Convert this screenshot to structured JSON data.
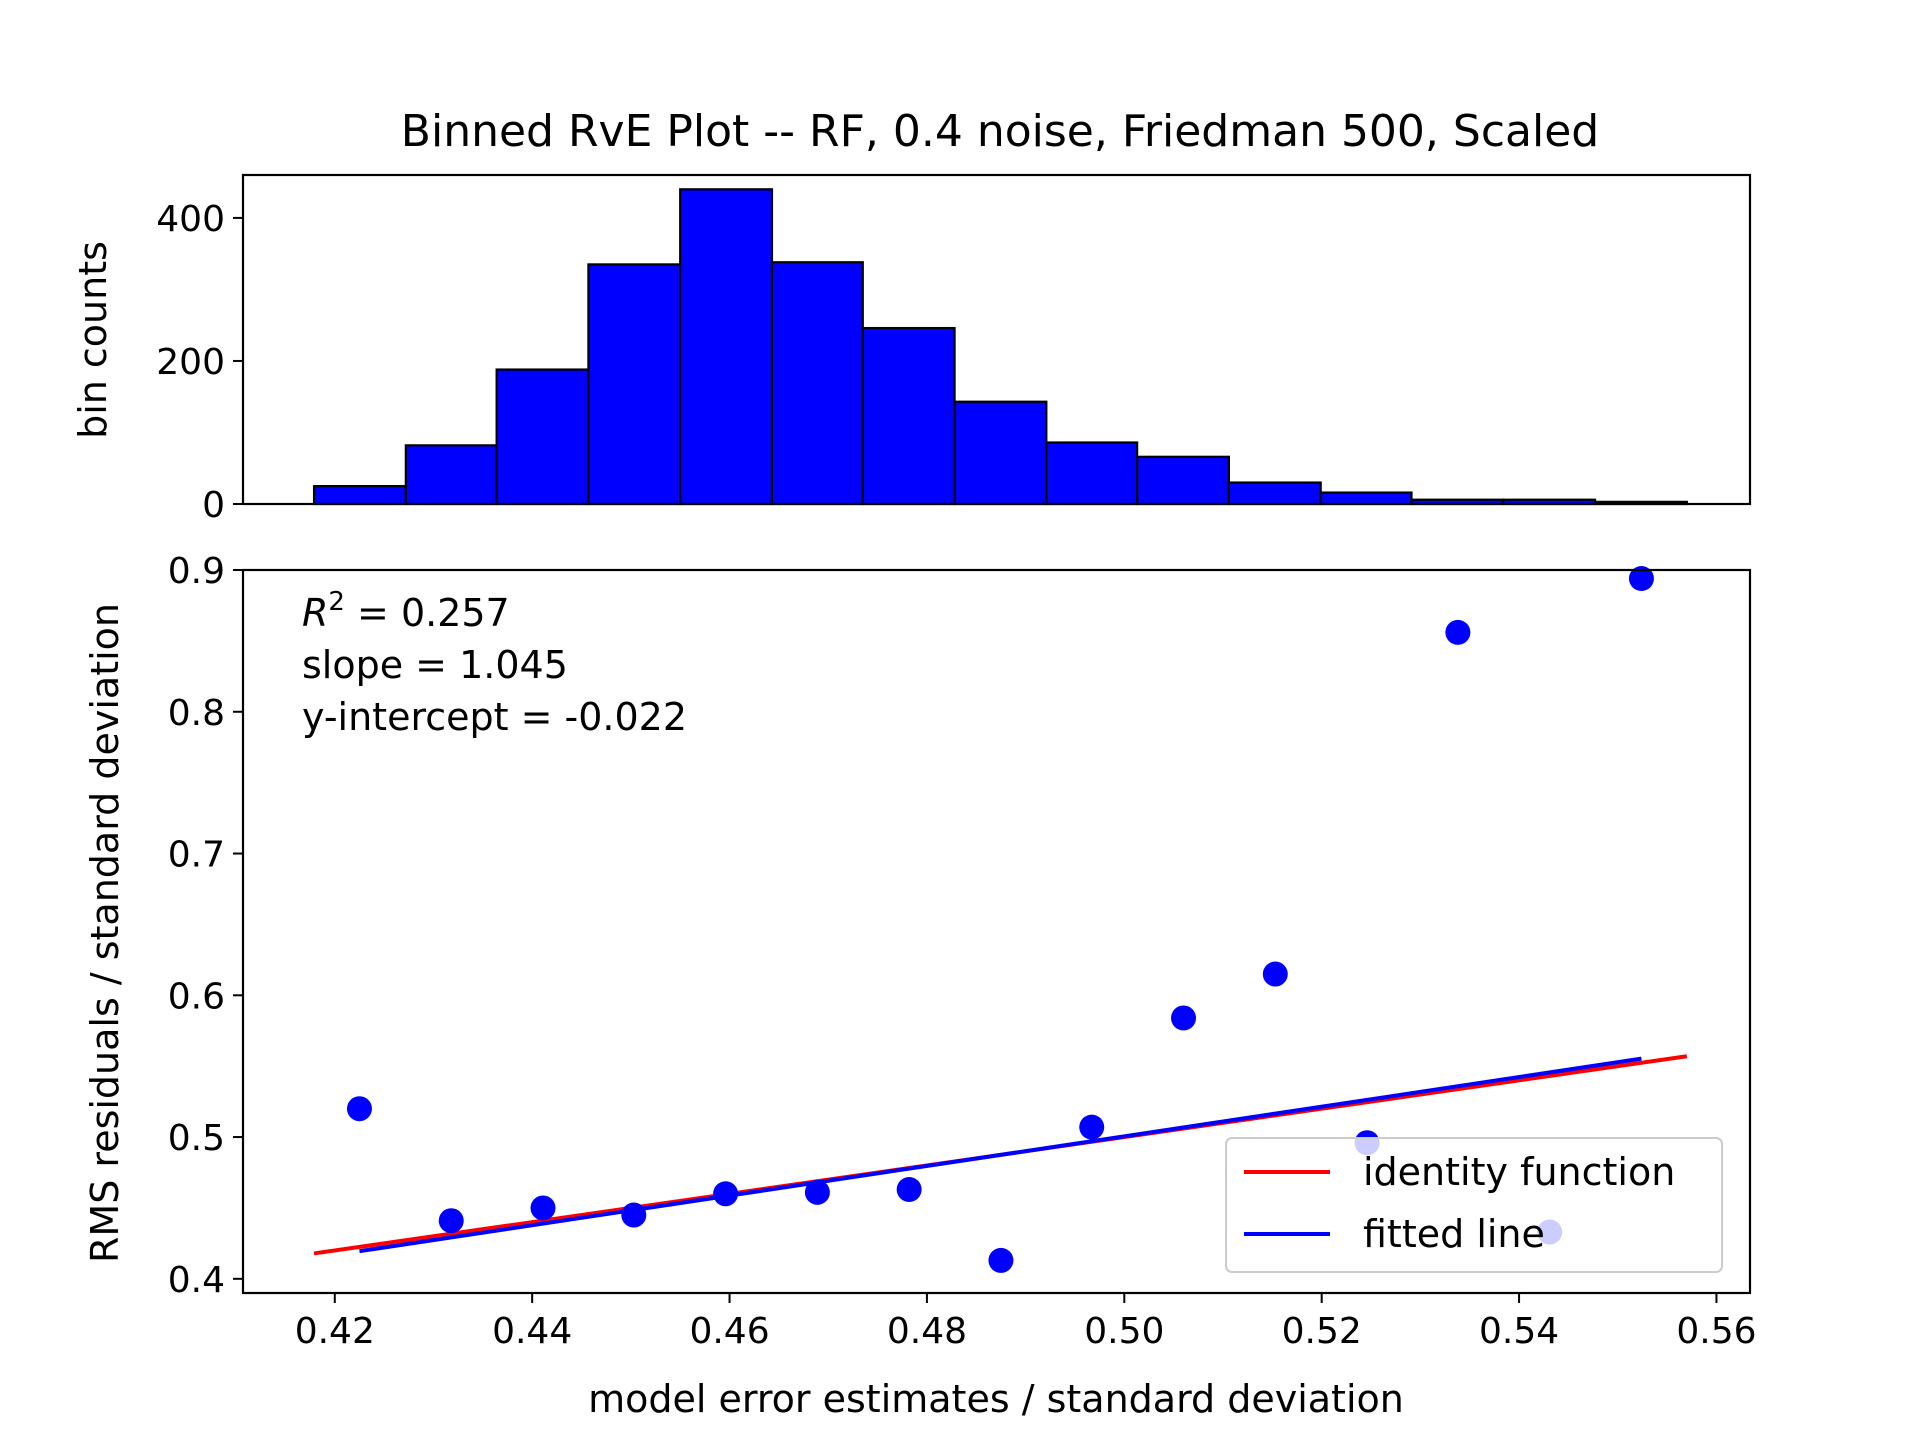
{
  "title": "Binned RvE Plot -- RF, 0.4 noise, Friedman 500, Scaled",
  "chart_data": [
    {
      "type": "bar",
      "ylabel": "bin counts",
      "xlim": [
        0.4107,
        0.5634
      ],
      "ylim": [
        0,
        460
      ],
      "yticks": [
        0,
        200,
        400
      ],
      "bin_edges": [
        0.4179,
        0.4272,
        0.4364,
        0.4457,
        0.455,
        0.4643,
        0.4735,
        0.4828,
        0.4921,
        0.5013,
        0.5106,
        0.5199,
        0.5291,
        0.5384,
        0.5477,
        0.557
      ],
      "values": [
        25,
        82,
        188,
        335,
        440,
        338,
        246,
        143,
        86,
        66,
        30,
        16,
        6,
        6,
        3
      ],
      "bar_color": "#0000ff",
      "edge_color": "#000000"
    },
    {
      "type": "scatter",
      "xlabel": "model error estimates / standard deviation",
      "ylabel": "RMS residuals / standard deviation",
      "xlim": [
        0.4107,
        0.5634
      ],
      "ylim": [
        0.39,
        0.9
      ],
      "xticks": [
        0.42,
        0.44,
        0.46,
        0.48,
        0.5,
        0.52,
        0.54,
        0.56
      ],
      "xtick_labels": [
        "0.42",
        "0.44",
        "0.46",
        "0.48",
        "0.50",
        "0.52",
        "0.54",
        "0.56"
      ],
      "yticks": [
        0.4,
        0.5,
        0.6,
        0.7,
        0.8,
        0.9
      ],
      "ytick_labels": [
        "0.4",
        "0.5",
        "0.6",
        "0.7",
        "0.8",
        "0.9"
      ],
      "points": {
        "x": [
          0.4225,
          0.4318,
          0.4411,
          0.4503,
          0.4596,
          0.4689,
          0.4782,
          0.4875,
          0.4967,
          0.506,
          0.5153,
          0.5246,
          0.5338,
          0.5431,
          0.5524
        ],
        "y": [
          0.52,
          0.441,
          0.45,
          0.445,
          0.46,
          0.461,
          0.463,
          0.413,
          0.507,
          0.584,
          0.615,
          0.496,
          0.856,
          0.433,
          0.894
        ],
        "color": "#0000ff"
      },
      "series": [
        {
          "name": "identity function",
          "color": "#ff0000",
          "x": [
            0.4179,
            0.557
          ],
          "y": [
            0.4179,
            0.557
          ]
        },
        {
          "name": "fitted line",
          "color": "#0000ff",
          "x": [
            0.4225,
            0.5524
          ],
          "y": [
            0.4195,
            0.5553
          ]
        }
      ],
      "annotations": {
        "r2_label": "R",
        "r2_sup": "2",
        "r2_value": " = 0.257",
        "slope": "slope = 1.045",
        "intercept": "y-intercept = -0.022"
      },
      "legend_position": "bottom-right"
    }
  ]
}
